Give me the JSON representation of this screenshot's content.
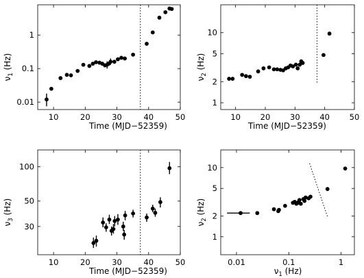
{
  "chart_data": [
    {
      "type": "scatter",
      "xlabel": "Time (MJD−52359)",
      "ylabel": "ν",
      "ylabel_sub": "1",
      "ylabel_unit": " (Hz)",
      "xscale": "linear",
      "yscale": "log",
      "xlim": [
        5,
        50
      ],
      "ylim": [
        0.006,
        8
      ],
      "xticks": [
        {
          "v": 10,
          "label": "10"
        },
        {
          "v": 20,
          "label": "20"
        },
        {
          "v": 30,
          "label": "30"
        },
        {
          "v": 40,
          "label": "40"
        },
        {
          "v": 50,
          "label": "50"
        }
      ],
      "yticks": [
        {
          "v": 0.01,
          "label": "0.01"
        },
        {
          "v": 0.1,
          "label": "0.1"
        },
        {
          "v": 1,
          "label": "1"
        }
      ],
      "vline": {
        "x": 37.4
      },
      "points": [
        {
          "x": 7.8,
          "y": 0.012,
          "ylo": 0.0075,
          "yhi": 0.018
        },
        {
          "x": 9.3,
          "y": 0.025
        },
        {
          "x": 12.2,
          "y": 0.052
        },
        {
          "x": 14.2,
          "y": 0.065
        },
        {
          "x": 15.5,
          "y": 0.063
        },
        {
          "x": 17.6,
          "y": 0.085
        },
        {
          "x": 19.4,
          "y": 0.13
        },
        {
          "x": 21.3,
          "y": 0.12
        },
        {
          "x": 22.4,
          "y": 0.14
        },
        {
          "x": 23.4,
          "y": 0.155
        },
        {
          "x": 24.5,
          "y": 0.15
        },
        {
          "x": 25.4,
          "y": 0.14
        },
        {
          "x": 26.2,
          "y": 0.125
        },
        {
          "x": 26.9,
          "y": 0.13,
          "ylo": 0.1,
          "yhi": 0.165
        },
        {
          "x": 27.4,
          "y": 0.14
        },
        {
          "x": 28.0,
          "y": 0.16,
          "ylo": 0.13,
          "yhi": 0.2
        },
        {
          "x": 29.2,
          "y": 0.16
        },
        {
          "x": 30.3,
          "y": 0.19
        },
        {
          "x": 31.4,
          "y": 0.21
        },
        {
          "x": 32.5,
          "y": 0.2
        },
        {
          "x": 35.1,
          "y": 0.26
        },
        {
          "x": 39.4,
          "y": 0.55
        },
        {
          "x": 41.3,
          "y": 1.2
        },
        {
          "x": 43.4,
          "y": 3.3
        },
        {
          "x": 45.3,
          "y": 4.8
        },
        {
          "x": 46.6,
          "y": 6.2
        },
        {
          "x": 47.3,
          "y": 6.0
        }
      ]
    },
    {
      "type": "scatter",
      "xlabel": "Time (MJD−52359)",
      "ylabel": "ν",
      "ylabel_sub": "2",
      "ylabel_unit": " (Hz)",
      "xscale": "linear",
      "yscale": "log",
      "xlim": [
        5,
        50
      ],
      "ylim": [
        0.8,
        25
      ],
      "xticks": [
        {
          "v": 10,
          "label": "10"
        },
        {
          "v": 20,
          "label": "20"
        },
        {
          "v": 30,
          "label": "30"
        },
        {
          "v": 40,
          "label": "40"
        },
        {
          "v": 50,
          "label": "50"
        }
      ],
      "yticks": [
        {
          "v": 1,
          "label": "1"
        },
        {
          "v": 2,
          "label": "2"
        },
        {
          "v": 5,
          "label": "5"
        },
        {
          "v": 10,
          "label": "10"
        }
      ],
      "vline": {
        "x": 37.4,
        "ymin": 1.9
      },
      "points": [
        {
          "x": 7.8,
          "y": 2.2
        },
        {
          "x": 9.0,
          "y": 2.2
        },
        {
          "x": 12.2,
          "y": 2.5
        },
        {
          "x": 13.5,
          "y": 2.4
        },
        {
          "x": 14.8,
          "y": 2.35
        },
        {
          "x": 17.6,
          "y": 2.8
        },
        {
          "x": 19.4,
          "y": 3.1
        },
        {
          "x": 21.3,
          "y": 3.2
        },
        {
          "x": 22.9,
          "y": 3.0
        },
        {
          "x": 24.0,
          "y": 3.0
        },
        {
          "x": 25.1,
          "y": 2.95
        },
        {
          "x": 26.0,
          "y": 2.9
        },
        {
          "x": 26.9,
          "y": 3.1
        },
        {
          "x": 27.7,
          "y": 3.2
        },
        {
          "x": 28.5,
          "y": 3.4
        },
        {
          "x": 29.3,
          "y": 3.3
        },
        {
          "x": 30.3,
          "y": 3.5
        },
        {
          "x": 30.9,
          "y": 3.1
        },
        {
          "x": 31.6,
          "y": 3.5
        },
        {
          "x": 32.1,
          "y": 3.9
        },
        {
          "x": 32.6,
          "y": 3.7
        },
        {
          "x": 39.6,
          "y": 4.8
        },
        {
          "x": 41.6,
          "y": 9.7
        }
      ]
    },
    {
      "type": "scatter",
      "xlabel": "Time (MJD−52359)",
      "ylabel": "ν",
      "ylabel_sub": "3",
      "ylabel_unit": " (Hz)",
      "xscale": "linear",
      "yscale": "log",
      "xlim": [
        5,
        50
      ],
      "ylim": [
        17,
        140
      ],
      "xticks": [
        {
          "v": 10,
          "label": "10"
        },
        {
          "v": 20,
          "label": "20"
        },
        {
          "v": 30,
          "label": "30"
        },
        {
          "v": 40,
          "label": "40"
        },
        {
          "v": 50,
          "label": "50"
        }
      ],
      "yticks": [
        {
          "v": 30,
          "label": "30"
        },
        {
          "v": 50,
          "label": "50"
        },
        {
          "v": 100,
          "label": "100"
        }
      ],
      "vline": {
        "x": 37.4
      },
      "points": [
        {
          "x": 22.6,
          "y": 21.5,
          "ylo": 19.5,
          "yhi": 24
        },
        {
          "x": 23.5,
          "y": 22.5,
          "ylo": 20,
          "yhi": 25
        },
        {
          "x": 25.6,
          "y": 32.5,
          "ylo": 29.5,
          "yhi": 36
        },
        {
          "x": 26.6,
          "y": 29.5,
          "ylo": 27,
          "yhi": 32
        },
        {
          "x": 27.6,
          "y": 34.5,
          "ylo": 31.5,
          "yhi": 38
        },
        {
          "x": 28.3,
          "y": 27.5,
          "ylo": 25,
          "yhi": 30
        },
        {
          "x": 28.9,
          "y": 28.5,
          "ylo": 26,
          "yhi": 31.5
        },
        {
          "x": 29.3,
          "y": 33.5,
          "ylo": 30,
          "yhi": 37
        },
        {
          "x": 30.3,
          "y": 34.5,
          "ylo": 31,
          "yhi": 38.5
        },
        {
          "x": 32.0,
          "y": 30.0,
          "ylo": 27.5,
          "yhi": 33
        },
        {
          "x": 32.3,
          "y": 25.5,
          "ylo": 23,
          "yhi": 28
        },
        {
          "x": 32.6,
          "y": 37.5,
          "ylo": 34,
          "yhi": 41
        },
        {
          "x": 35.1,
          "y": 39.0,
          "ylo": 36,
          "yhi": 42
        },
        {
          "x": 39.4,
          "y": 36.0,
          "ylo": 33,
          "yhi": 39
        },
        {
          "x": 41.3,
          "y": 43.0,
          "ylo": 40,
          "yhi": 46.5
        },
        {
          "x": 42.1,
          "y": 39.5,
          "ylo": 36.5,
          "yhi": 43
        },
        {
          "x": 43.7,
          "y": 49.0,
          "ylo": 44,
          "yhi": 54
        },
        {
          "x": 46.6,
          "y": 97.0,
          "ylo": 86,
          "yhi": 110
        }
      ]
    },
    {
      "type": "scatter",
      "xlabel": "ν",
      "xlabel_sub": "1",
      "xlabel_unit": " (Hz)",
      "ylabel": "ν",
      "ylabel_sub": "2",
      "ylabel_unit": " (Hz)",
      "xscale": "log",
      "yscale": "log",
      "xlim": [
        0.005,
        1.8
      ],
      "ylim": [
        0.55,
        18
      ],
      "xticks": [
        {
          "v": 0.01,
          "label": "0.01"
        },
        {
          "v": 0.1,
          "label": "0.1"
        },
        {
          "v": 1,
          "label": "1"
        }
      ],
      "yticks": [
        {
          "v": 1,
          "label": "1"
        },
        {
          "v": 2,
          "label": "2"
        },
        {
          "v": 5,
          "label": "5"
        },
        {
          "v": 10,
          "label": "10"
        }
      ],
      "diag_line": {
        "x1": 0.25,
        "y1": 11.5,
        "x2": 0.55,
        "y2": 1.95
      },
      "points": [
        {
          "x": 0.012,
          "y": 2.2,
          "xlo": 0.0066,
          "xhi": 0.018
        },
        {
          "x": 0.025,
          "y": 2.2
        },
        {
          "x": 0.052,
          "y": 2.5
        },
        {
          "x": 0.065,
          "y": 2.45
        },
        {
          "x": 0.063,
          "y": 2.35
        },
        {
          "x": 0.085,
          "y": 2.8
        },
        {
          "x": 0.12,
          "y": 3.1
        },
        {
          "x": 0.13,
          "y": 3.2
        },
        {
          "x": 0.14,
          "y": 3.0
        },
        {
          "x": 0.15,
          "y": 3.1,
          "xlo": 0.12,
          "xhi": 0.18
        },
        {
          "x": 0.155,
          "y": 3.2
        },
        {
          "x": 0.16,
          "y": 3.4
        },
        {
          "x": 0.17,
          "y": 3.0
        },
        {
          "x": 0.19,
          "y": 3.5
        },
        {
          "x": 0.2,
          "y": 3.3
        },
        {
          "x": 0.21,
          "y": 3.7
        },
        {
          "x": 0.24,
          "y": 3.6
        },
        {
          "x": 0.26,
          "y": 3.8
        },
        {
          "x": 0.55,
          "y": 4.9
        },
        {
          "x": 1.2,
          "y": 9.7
        }
      ]
    }
  ]
}
